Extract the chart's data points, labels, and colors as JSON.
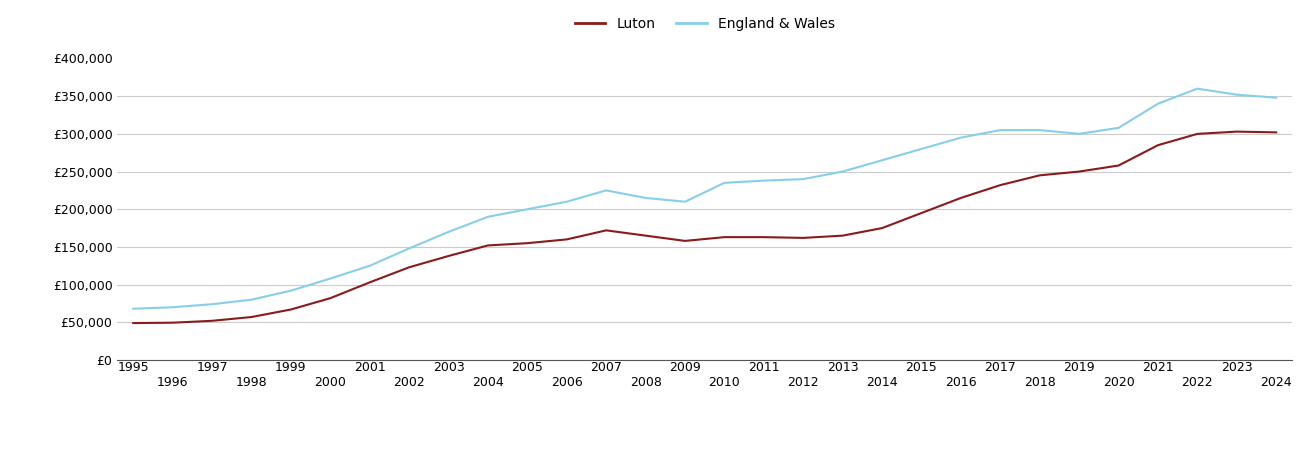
{
  "luton_years": [
    1995,
    1996,
    1997,
    1998,
    1999,
    2000,
    2001,
    2002,
    2003,
    2004,
    2005,
    2006,
    2007,
    2008,
    2009,
    2010,
    2011,
    2012,
    2013,
    2014,
    2015,
    2016,
    2017,
    2018,
    2019,
    2020,
    2021,
    2022,
    2023,
    2024
  ],
  "luton_values": [
    49000,
    49500,
    52000,
    57000,
    67000,
    82000,
    103000,
    123000,
    138000,
    152000,
    155000,
    160000,
    172000,
    165000,
    158000,
    163000,
    163000,
    162000,
    165000,
    175000,
    195000,
    215000,
    232000,
    245000,
    250000,
    258000,
    285000,
    300000,
    303000,
    302000
  ],
  "ew_years": [
    1995,
    1996,
    1997,
    1998,
    1999,
    2000,
    2001,
    2002,
    2003,
    2004,
    2005,
    2006,
    2007,
    2008,
    2009,
    2010,
    2011,
    2012,
    2013,
    2014,
    2015,
    2016,
    2017,
    2018,
    2019,
    2020,
    2021,
    2022,
    2023,
    2024
  ],
  "ew_values": [
    68000,
    70000,
    74000,
    80000,
    92000,
    108000,
    125000,
    148000,
    170000,
    190000,
    200000,
    210000,
    225000,
    215000,
    210000,
    235000,
    238000,
    240000,
    250000,
    265000,
    280000,
    295000,
    305000,
    305000,
    300000,
    308000,
    340000,
    360000,
    352000,
    348000
  ],
  "luton_color": "#8B1A1A",
  "ew_color": "#87CEEB",
  "luton_label": "Luton",
  "ew_label": "England & Wales",
  "ylim": [
    0,
    400000
  ],
  "yticks": [
    0,
    50000,
    100000,
    150000,
    200000,
    250000,
    300000,
    350000,
    400000
  ],
  "odd_years": [
    1995,
    1997,
    1999,
    2001,
    2003,
    2005,
    2007,
    2009,
    2011,
    2013,
    2015,
    2017,
    2019,
    2021,
    2023
  ],
  "even_years": [
    1996,
    1998,
    2000,
    2002,
    2004,
    2006,
    2008,
    2010,
    2012,
    2014,
    2016,
    2018,
    2020,
    2022,
    2024
  ],
  "background_color": "#ffffff",
  "grid_color": "#cccccc",
  "line_width": 1.5,
  "tick_fontsize": 9,
  "legend_fontsize": 10
}
